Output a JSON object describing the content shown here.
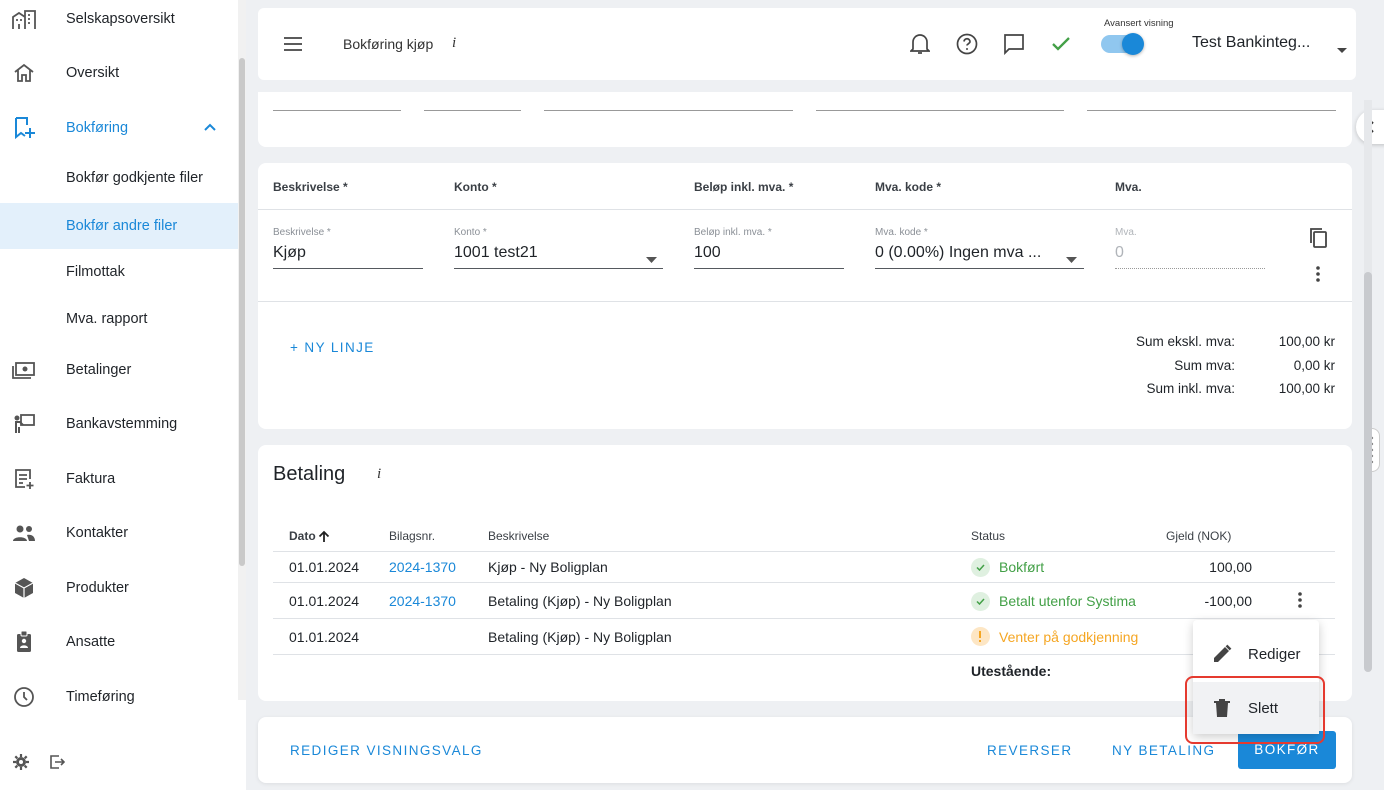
{
  "sidebar": {
    "items": [
      {
        "label": "Selskapsoversikt",
        "icon": "buildings-icon"
      },
      {
        "label": "Oversikt",
        "icon": "home-icon"
      },
      {
        "label": "Bokføring",
        "icon": "bookmark-add-icon"
      },
      {
        "label": "Bokfør godkjente filer"
      },
      {
        "label": "Bokfør andre filer"
      },
      {
        "label": "Filmottak"
      },
      {
        "label": "Mva. rapport"
      },
      {
        "label": "Betalinger",
        "icon": "money-icon"
      },
      {
        "label": "Bankavstemming",
        "icon": "presentation-icon"
      },
      {
        "label": "Faktura",
        "icon": "invoice-icon"
      },
      {
        "label": "Kontakter",
        "icon": "people-icon"
      },
      {
        "label": "Produkter",
        "icon": "box-icon"
      },
      {
        "label": "Ansatte",
        "icon": "badge-icon"
      },
      {
        "label": "Timeføring",
        "icon": "clock-icon"
      }
    ]
  },
  "header": {
    "title": "Bokføring kjøp",
    "info": "i",
    "advanced_label": "Avansert visning",
    "company": "Test Bankinteg..."
  },
  "lines": {
    "headers": [
      "Beskrivelse *",
      "Konto *",
      "Beløp inkl. mva. *",
      "Mva. kode *",
      "Mva."
    ],
    "row": {
      "beskrivelse_label": "Beskrivelse *",
      "beskrivelse": "Kjøp",
      "konto_label": "Konto *",
      "konto": "1001 test21",
      "belop_label": "Beløp inkl. mva. *",
      "belop": "100",
      "mva_kode_label": "Mva. kode *",
      "mva_kode": "0 (0.00%) Ingen mva ...",
      "mva_label": "Mva.",
      "mva": "0"
    },
    "add_line": "+ NY LINJE",
    "sums": [
      {
        "label": "Sum ekskl. mva:",
        "value": "100,00 kr"
      },
      {
        "label": "Sum mva:",
        "value": "0,00 kr"
      },
      {
        "label": "Sum inkl. mva:",
        "value": "100,00 kr"
      }
    ]
  },
  "payment": {
    "title": "Betaling",
    "info": "i",
    "columns": [
      "Dato",
      "Bilagsnr.",
      "Beskrivelse",
      "Status",
      "Gjeld (NOK)"
    ],
    "rows": [
      {
        "dato": "01.01.2024",
        "bilag": "2024-1370",
        "beskrivelse": "Kjøp - Ny Boligplan",
        "status": "Bokført",
        "gjeld": "100,00"
      },
      {
        "dato": "01.01.2024",
        "bilag": "2024-1370",
        "beskrivelse": "Betaling (Kjøp) - Ny Boligplan",
        "status": "Betalt utenfor Systima",
        "gjeld": "-100,00"
      },
      {
        "dato": "01.01.2024",
        "bilag": "",
        "beskrivelse": "Betaling (Kjøp) - Ny Boligplan",
        "status": "Venter på godkjenning",
        "gjeld": ""
      }
    ],
    "outstanding_label": "Utestående:"
  },
  "footer": {
    "edit_view": "REDIGER VISNINGSVALG",
    "reverse": "REVERSER",
    "new_payment": "NY BETALING",
    "post": "BOKFØR"
  },
  "context_menu": {
    "edit": "Rediger",
    "delete": "Slett"
  },
  "colors": {
    "accent": "#1a88d8",
    "success": "#43a047",
    "warning": "#f5a623",
    "highlight": "#e53a2f"
  }
}
